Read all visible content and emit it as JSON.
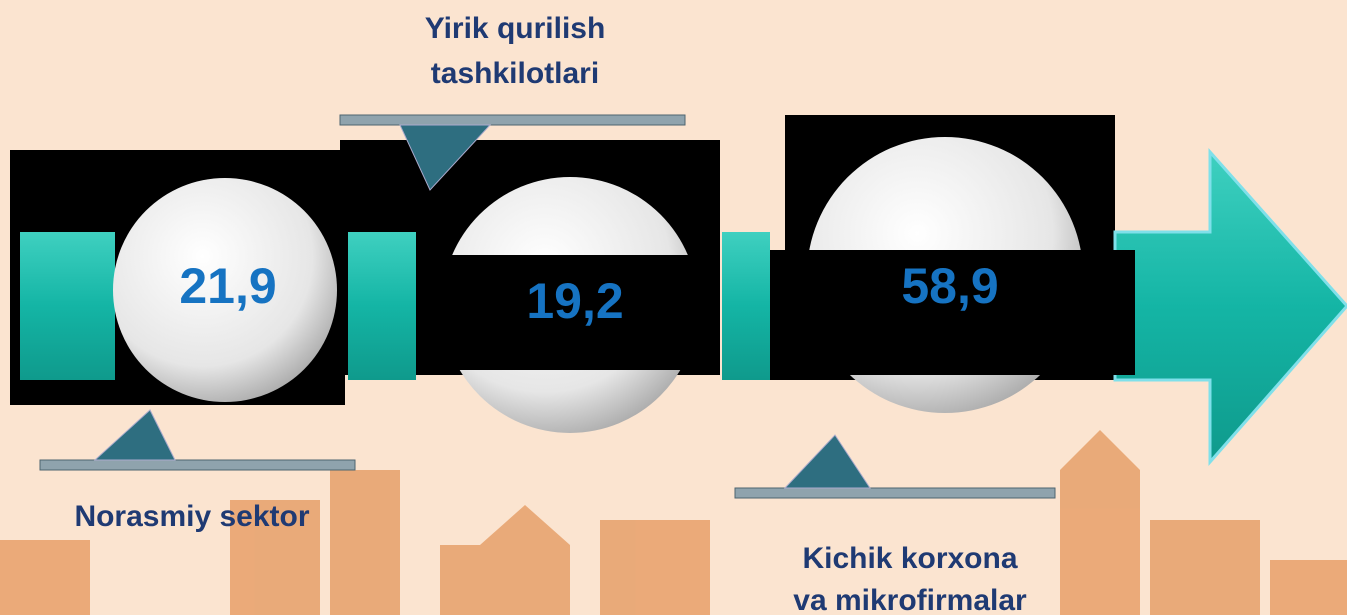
{
  "items": [
    {
      "label": [
        "Norasmiy sektor"
      ],
      "value": "21,9"
    },
    {
      "label": [
        "Yirik qurilish",
        "tashkilotlari"
      ],
      "value": "19,2"
    },
    {
      "label": [
        "Kichik korxona",
        "va mikrofirmalar"
      ],
      "value": "58,9"
    }
  ]
}
